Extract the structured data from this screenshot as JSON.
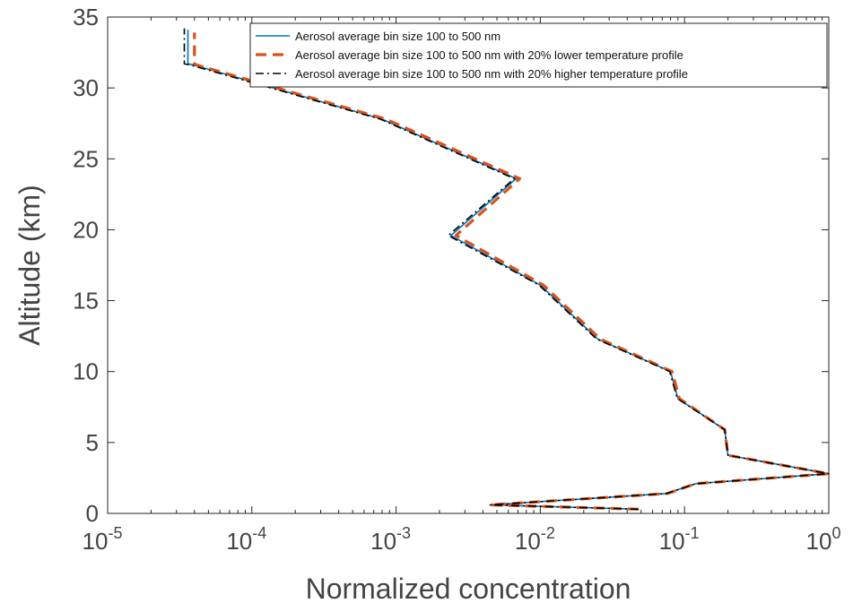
{
  "chart_data": {
    "type": "line",
    "title": "",
    "xlabel": "Normalized concentration",
    "ylabel": "Altitude (km)",
    "xscale": "log",
    "xlim": [
      1e-05,
      1
    ],
    "ylim": [
      0,
      35
    ],
    "x_ticks": [
      {
        "base": "10",
        "exp": "-5"
      },
      {
        "base": "10",
        "exp": "-4"
      },
      {
        "base": "10",
        "exp": "-3"
      },
      {
        "base": "10",
        "exp": "-2"
      },
      {
        "base": "10",
        "exp": "-1"
      },
      {
        "base": "10",
        "exp": "0"
      }
    ],
    "y_ticks": [
      "0",
      "5",
      "10",
      "15",
      "20",
      "25",
      "30",
      "35"
    ],
    "grid": false,
    "legend_position": "top-right",
    "series": [
      {
        "name": "Aerosol average bin size 100 to 500 nm",
        "color": "#0072BD",
        "style": "solid",
        "points": [
          [
            0.048,
            0.3
          ],
          [
            0.0045,
            0.6
          ],
          [
            0.075,
            1.4
          ],
          [
            0.12,
            2.1
          ],
          [
            1.0,
            2.8
          ],
          [
            0.2,
            4.1
          ],
          [
            0.19,
            5.9
          ],
          [
            0.09,
            8.1
          ],
          [
            0.08,
            10.0
          ],
          [
            0.025,
            12.3
          ],
          [
            0.01,
            16.1
          ],
          [
            0.0024,
            19.6
          ],
          [
            0.0068,
            23.6
          ],
          [
            0.0008,
            27.8
          ],
          [
            4e-05,
            31.6
          ],
          [
            3.6e-05,
            31.7
          ],
          [
            3.6e-05,
            34.1
          ]
        ]
      },
      {
        "name": "Aerosol average bin size 100 to 500 nm with 20% lower temperature profile",
        "color": "#D95319",
        "style": "dashed",
        "points": [
          [
            0.048,
            0.3
          ],
          [
            0.0045,
            0.6
          ],
          [
            0.076,
            1.4
          ],
          [
            0.12,
            2.1
          ],
          [
            1.0,
            2.8
          ],
          [
            0.2,
            4.1
          ],
          [
            0.19,
            5.9
          ],
          [
            0.092,
            8.1
          ],
          [
            0.082,
            10.0
          ],
          [
            0.026,
            12.3
          ],
          [
            0.0105,
            16.1
          ],
          [
            0.0026,
            19.6
          ],
          [
            0.0072,
            23.6
          ],
          [
            0.00085,
            27.8
          ],
          [
            4.2e-05,
            31.6
          ],
          [
            4e-05,
            31.7
          ],
          [
            4e-05,
            33.9
          ]
        ]
      },
      {
        "name": "Aerosol average bin size 100 to 500 nm with 20% higher temperature profile",
        "color": "#000000",
        "style": "dashdot",
        "points": [
          [
            0.048,
            0.3
          ],
          [
            0.0045,
            0.6
          ],
          [
            0.075,
            1.4
          ],
          [
            0.12,
            2.1
          ],
          [
            1.0,
            2.8
          ],
          [
            0.2,
            4.1
          ],
          [
            0.19,
            5.9
          ],
          [
            0.089,
            8.1
          ],
          [
            0.079,
            10.0
          ],
          [
            0.0245,
            12.3
          ],
          [
            0.0098,
            16.1
          ],
          [
            0.0023,
            19.6
          ],
          [
            0.0066,
            23.6
          ],
          [
            0.00078,
            27.8
          ],
          [
            3.8e-05,
            31.6
          ],
          [
            3.4e-05,
            31.7
          ],
          [
            3.4e-05,
            34.2
          ]
        ]
      }
    ]
  }
}
